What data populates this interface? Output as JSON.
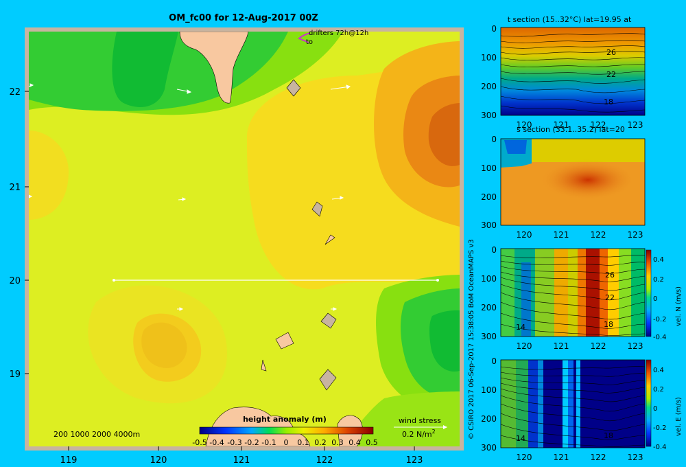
{
  "title": "OM_fc00 for 12-Aug-2017 00Z",
  "copyright": "© CSIRO 2017   06-Sep-2017 15:38:05 BoM OceanMAPS v3",
  "colors": {
    "background": "#00ccff",
    "frame": "#c8b4a0",
    "land": "#f8c8a0",
    "vector": "#ffffff",
    "drifter": "#cc33cc"
  },
  "chart_data": [
    {
      "type": "heatmap",
      "name": "main-map",
      "title": "height anomaly (m)",
      "x_ticks": [
        "119",
        "120",
        "121",
        "122",
        "123"
      ],
      "y_ticks": [
        "22",
        "21",
        "20",
        "19"
      ],
      "xlim": [
        118.5,
        123.5
      ],
      "ylim": [
        18.3,
        22.7
      ],
      "drifters_label": "drifters 72h@12h",
      "drifters_to": "to",
      "depth_legend": "200  1000  2000  4000m",
      "wind_stress_label": "wind stress",
      "wind_stress_units": "0.2 N/m",
      "wind_stress_sup": "2",
      "colorbar_ticks": [
        "-0.5",
        "-0.4",
        "-0.3",
        "-0.2",
        "-0.1",
        "0",
        "0.1",
        "0.2",
        "0.3",
        "0.4",
        "0.5"
      ],
      "section_line_lat": 20,
      "section_line_lon": [
        119.5,
        123.2
      ]
    },
    {
      "type": "heatmap",
      "name": "t-section",
      "title": "t section (15..32°C) lat=19.95 at",
      "x_ticks": [
        "120",
        "121",
        "122",
        "123"
      ],
      "y_ticks": [
        "0",
        "100",
        "200",
        "300"
      ],
      "contour_labels": [
        "26",
        "22",
        "18"
      ]
    },
    {
      "type": "heatmap",
      "name": "s-section",
      "title": "s section (33.1..35.2) lat=20",
      "x_ticks": [
        "120",
        "121",
        "122",
        "123"
      ],
      "y_ticks": [
        "0",
        "100",
        "200",
        "300"
      ]
    },
    {
      "type": "heatmap",
      "name": "vel-n-section",
      "x_ticks": [
        "120",
        "121",
        "122",
        "123"
      ],
      "y_ticks": [
        "0",
        "100",
        "200",
        "300"
      ],
      "contour_labels": [
        "26",
        "22",
        "18",
        "14"
      ],
      "colorbar_ticks": [
        "0.4",
        "0.2",
        "0",
        "-0.2",
        "-0.4"
      ],
      "colorbar_label": "vel. N (m/s)"
    },
    {
      "type": "heatmap",
      "name": "vel-e-section",
      "x_ticks": [
        "120",
        "121",
        "122",
        "123"
      ],
      "y_ticks": [
        "0",
        "100",
        "200",
        "300"
      ],
      "contour_labels": [
        "18",
        "14"
      ],
      "colorbar_ticks": [
        "0.4",
        "0.2",
        "0",
        "-0.2",
        "-0.4"
      ],
      "colorbar_label": "vel. E (m/s)"
    }
  ]
}
